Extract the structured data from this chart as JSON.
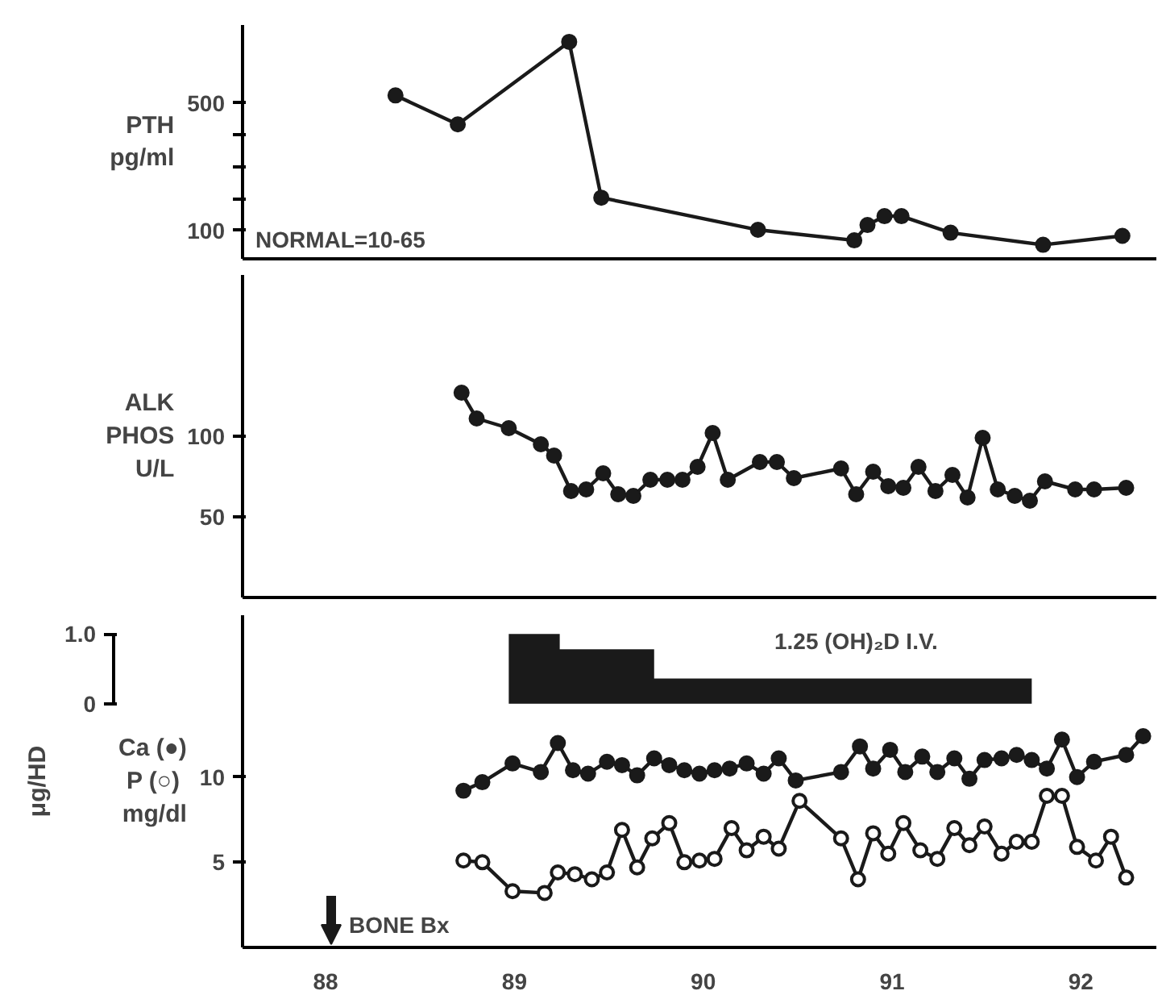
{
  "chart_data": [
    {
      "type": "line",
      "ylabel": "PTH\npg/ml",
      "xlim": [
        87.56,
        92.4
      ],
      "ylim": [
        11,
        745
      ],
      "yticks": [
        100,
        {
          "value": 200,
          "label": null
        },
        {
          "value": 300,
          "label": null
        },
        {
          "value": 400,
          "label": null
        },
        500
      ],
      "tick_labels": "y",
      "grid": false,
      "marker": "circle",
      "line_style": "solid",
      "annotations": [
        "NORMAL=10-65"
      ],
      "series": [
        {
          "color": "#1a1a1a",
          "x": [
            88.37,
            88.7,
            89.29,
            89.46,
            90.29,
            90.8,
            90.87,
            90.96,
            91.05,
            91.31,
            91.8,
            92.22
          ],
          "values": [
            524,
            433,
            692,
            203,
            102,
            69,
            117,
            145,
            145,
            93,
            55,
            83
          ]
        }
      ]
    },
    {
      "type": "line",
      "ylabel": "ALK\nPHOS\nU/L",
      "xlim": [
        87.56,
        92.4
      ],
      "ylim": [
        0,
        200
      ],
      "yticks": [
        50,
        100
      ],
      "tick_labels": "y",
      "grid": false,
      "marker": "circle",
      "line_style": "solid",
      "series": [
        {
          "color": "#1a1a1a",
          "x": [
            88.72,
            88.8,
            88.97,
            89.14,
            89.21,
            89.3,
            89.38,
            89.47,
            89.55,
            89.63,
            89.72,
            89.81,
            89.89,
            89.97,
            90.05,
            90.13,
            90.3,
            90.39,
            90.48,
            90.73,
            90.81,
            90.9,
            90.98,
            91.06,
            91.14,
            91.23,
            91.32,
            91.4,
            91.48,
            91.56,
            91.65,
            91.73,
            91.81,
            91.97,
            92.07,
            92.24
          ],
          "values": [
            127,
            111,
            105,
            95,
            88,
            66,
            67,
            77,
            64,
            63,
            73,
            73,
            73,
            81,
            102,
            73,
            84,
            84,
            74,
            80,
            64,
            78,
            69,
            68,
            81,
            66,
            76,
            62,
            99,
            67,
            63,
            60,
            72,
            67,
            67,
            68
          ]
        }
      ]
    },
    {
      "type": "line",
      "ylabel": "Ca (●)\nP  (○)\nmg/dl",
      "y2label": "μg/HD",
      "xlim": [
        87.56,
        92.4
      ],
      "ylim": [
        0,
        19.5
      ],
      "yticks": [
        5,
        10
      ],
      "y2lim": [
        -3.5,
        1.27
      ],
      "y2ticks": [
        0,
        {
          "value": 1.0,
          "label": "1.0"
        }
      ],
      "xticks": [
        88,
        89,
        90,
        91,
        92
      ],
      "grid": false,
      "line_style": "solid",
      "annotations": [
        "1.25 (OH)₂D I.V.",
        "BONE Bx"
      ],
      "series": [
        {
          "type": "area",
          "axis": "y2",
          "color": "#1a1a1a",
          "x": [
            88.97,
            89.24,
            89.24,
            89.74,
            89.74,
            91.74
          ],
          "values": [
            1.0,
            1.0,
            0.78,
            0.78,
            0.36,
            0.36
          ]
        },
        {
          "color": "#1a1a1a",
          "marker": "circle",
          "x": [
            88.73,
            88.83,
            88.99,
            89.14,
            89.23,
            89.31,
            89.39,
            89.49,
            89.57,
            89.65,
            89.74,
            89.82,
            89.9,
            89.98,
            90.06,
            90.14,
            90.23,
            90.32,
            90.4,
            90.49,
            90.73,
            90.83,
            90.9,
            90.99,
            91.07,
            91.16,
            91.24,
            91.33,
            91.41,
            91.49,
            91.58,
            91.66,
            91.74,
            91.82,
            91.9,
            91.98,
            92.07,
            92.24,
            92.33
          ],
          "values": [
            9.2,
            9.7,
            10.8,
            10.3,
            12.0,
            10.4,
            10.2,
            10.9,
            10.7,
            10.1,
            11.1,
            10.7,
            10.4,
            10.2,
            10.4,
            10.5,
            10.8,
            10.2,
            11.1,
            9.8,
            10.3,
            11.8,
            10.5,
            11.6,
            10.3,
            11.2,
            10.3,
            11.1,
            9.9,
            11.0,
            11.1,
            11.3,
            11.0,
            10.5,
            12.2,
            10.0,
            10.9,
            11.3,
            12.4
          ]
        },
        {
          "color": "#1a1a1a",
          "marker": "circle_open",
          "x": [
            88.73,
            88.83,
            88.99,
            89.16,
            89.23,
            89.32,
            89.41,
            89.49,
            89.57,
            89.65,
            89.73,
            89.82,
            89.9,
            89.98,
            90.06,
            90.15,
            90.23,
            90.32,
            90.4,
            90.51,
            90.73,
            90.82,
            90.9,
            90.98,
            91.06,
            91.15,
            91.24,
            91.33,
            91.41,
            91.49,
            91.58,
            91.66,
            91.74,
            91.82,
            91.9,
            91.98,
            92.08,
            92.16,
            92.24
          ],
          "values": [
            5.1,
            5.0,
            3.3,
            3.2,
            4.4,
            4.3,
            4.0,
            4.4,
            6.9,
            4.7,
            6.4,
            7.3,
            5.0,
            5.1,
            5.2,
            7.0,
            5.7,
            6.5,
            5.8,
            8.6,
            6.4,
            4.0,
            6.7,
            5.5,
            7.3,
            5.7,
            5.2,
            7.0,
            6.0,
            7.1,
            5.5,
            6.2,
            6.2,
            8.9,
            8.9,
            5.9,
            5.1,
            6.5,
            4.1
          ]
        }
      ]
    }
  ]
}
